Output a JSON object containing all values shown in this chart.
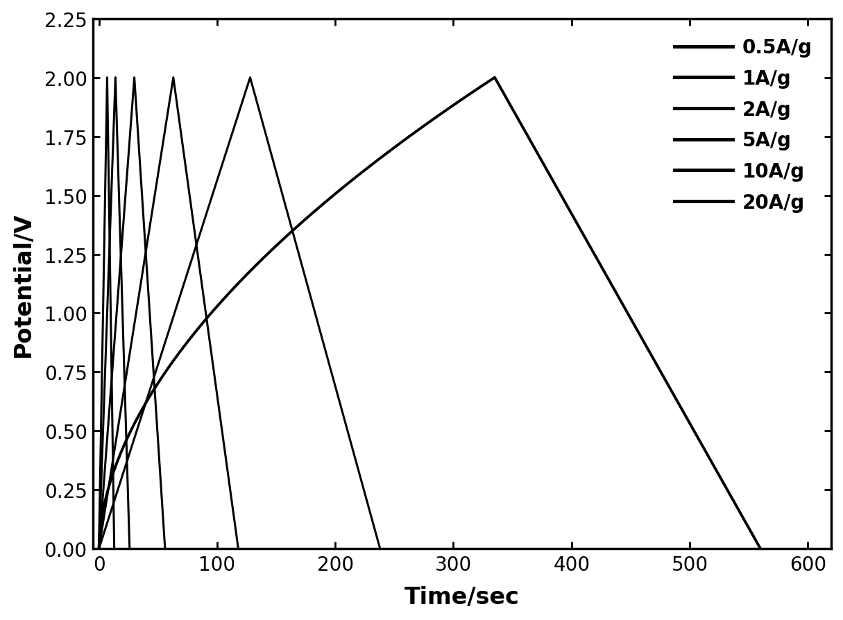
{
  "title": "",
  "xlabel": "Time/sec",
  "ylabel": "Potential/V",
  "xlim": [
    -5,
    620
  ],
  "ylim": [
    0.0,
    2.25
  ],
  "xticks": [
    0,
    100,
    200,
    300,
    400,
    500,
    600
  ],
  "yticks": [
    0.0,
    0.25,
    0.5,
    0.75,
    1.0,
    1.25,
    1.5,
    1.75,
    2.0,
    2.25
  ],
  "background_color": "#ffffff",
  "line_color": "#000000",
  "legend_labels": [
    "0.5A/g",
    "1A/g",
    "2A/g",
    "5A/g",
    "10A/g",
    "20A/g"
  ],
  "curve_params": [
    {
      "label": "0.5A/g",
      "t_charge": 335,
      "t_end": 560,
      "lw": 2.8,
      "charge_exp": 0.55,
      "discharge_exp": 1.0
    },
    {
      "label": "1A/g",
      "t_charge": 128,
      "t_end": 238,
      "lw": 2.2,
      "charge_exp": 1.0,
      "discharge_exp": 1.0
    },
    {
      "label": "2A/g",
      "t_charge": 63,
      "t_end": 118,
      "lw": 2.2,
      "charge_exp": 1.0,
      "discharge_exp": 1.0
    },
    {
      "label": "5A/g",
      "t_charge": 30,
      "t_end": 56,
      "lw": 2.2,
      "charge_exp": 1.0,
      "discharge_exp": 1.0
    },
    {
      "label": "10A/g",
      "t_charge": 14,
      "t_end": 26,
      "lw": 2.2,
      "charge_exp": 1.0,
      "discharge_exp": 1.0
    },
    {
      "label": "20A/g",
      "t_charge": 7,
      "t_end": 13,
      "lw": 2.2,
      "charge_exp": 1.0,
      "discharge_exp": 1.0
    }
  ],
  "axis_linewidth": 2.5,
  "tick_fontsize": 20,
  "label_fontsize": 24,
  "legend_fontsize": 20
}
